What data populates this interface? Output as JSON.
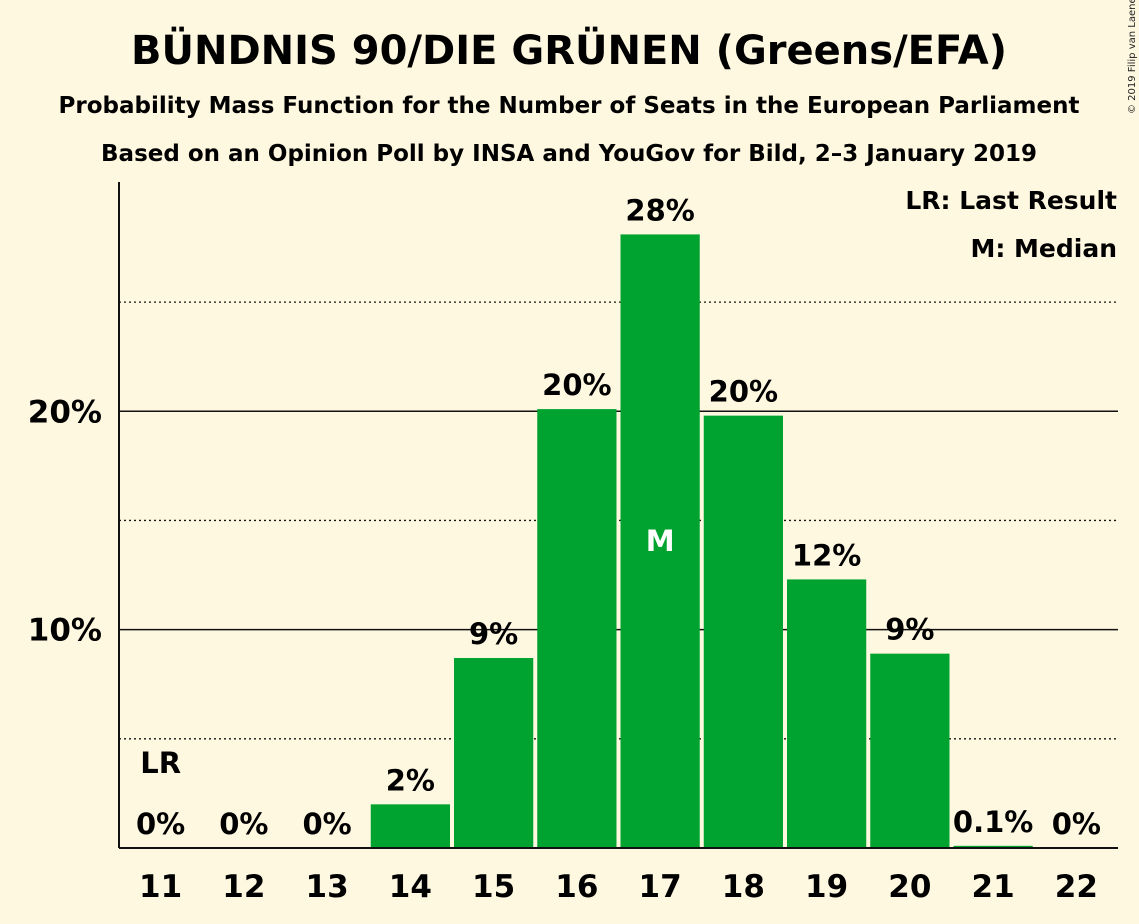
{
  "chart_data": {
    "type": "bar",
    "title": "BÜNDNIS 90/DIE GRÜNEN (Greens/EFA)",
    "subtitle": "Probability Mass Function for the Number of Seats in the European Parliament",
    "subtitle2": "Based on an Opinion Poll by INSA and YouGov for Bild, 2–3 January 2019",
    "copyright": "© 2019 Filip van Laenen",
    "categories": [
      "11",
      "12",
      "13",
      "14",
      "15",
      "16",
      "17",
      "18",
      "19",
      "20",
      "21",
      "22"
    ],
    "values": [
      0,
      0,
      0,
      2,
      8.7,
      20.1,
      28.1,
      19.8,
      12.3,
      8.9,
      0.1,
      0
    ],
    "value_labels": [
      "0%",
      "0%",
      "0%",
      "2%",
      "9%",
      "20%",
      "28%",
      "20%",
      "12%",
      "9%",
      "0.1%",
      "0%"
    ],
    "ylim": [
      0,
      30.5
    ],
    "yticks": [
      {
        "value": 10,
        "label": "10%"
      },
      {
        "value": 20,
        "label": "20%"
      }
    ],
    "dotted_gridlines": [
      5,
      15,
      25
    ],
    "last_result": {
      "category": "11",
      "marker": "LR"
    },
    "median": {
      "category": "17",
      "marker": "M"
    },
    "legend": [
      "LR: Last Result",
      "M: Median"
    ],
    "legend_position": "top-right",
    "bar_color": "#00a32f"
  }
}
